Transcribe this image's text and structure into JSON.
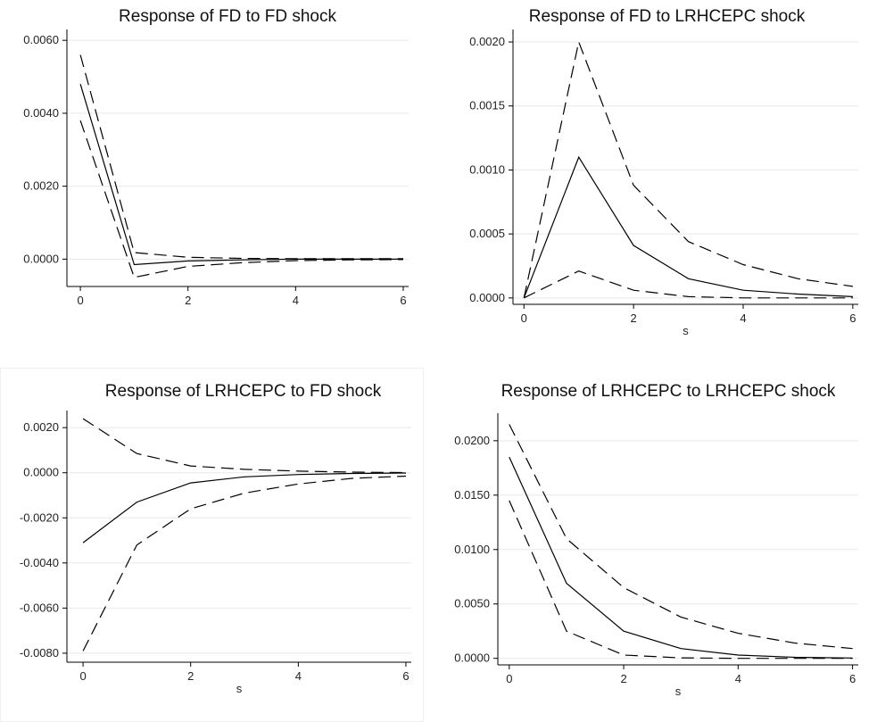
{
  "chart_data": [
    {
      "type": "line",
      "title": "Response of FD to FD shock",
      "xlabel": "",
      "ylabel": "",
      "x": [
        0,
        1,
        2,
        3,
        4,
        5,
        6
      ],
      "xticks": [
        0,
        2,
        4,
        6
      ],
      "yticks": [
        0.0,
        0.002,
        0.004,
        0.006
      ],
      "ytick_labels": [
        "0.0000",
        "0.0020",
        "0.0040",
        "0.0060"
      ],
      "xlim": [
        -0.25,
        6.1
      ],
      "ylim": [
        -0.00075,
        0.0062
      ],
      "grid": true,
      "series": [
        {
          "values": [
            0.0048,
            -0.00015,
            -5e-05,
            -2e-05,
            0.0,
            0.0,
            0.0
          ],
          "style": "solid"
        },
        {
          "values": [
            0.0056,
            0.00018,
            5e-05,
            2e-05,
            1e-05,
            1e-05,
            1e-05
          ],
          "style": "dashed"
        },
        {
          "values": [
            0.0038,
            -0.0005,
            -0.0002,
            -0.0001,
            -4e-05,
            -2e-05,
            -1e-05
          ],
          "style": "dashed"
        }
      ]
    },
    {
      "type": "line",
      "title": "Response of FD to LRHCEPC shock",
      "xlabel": "s",
      "ylabel": "",
      "x": [
        0,
        1,
        2,
        3,
        4,
        5,
        6
      ],
      "xticks": [
        0,
        2,
        4,
        6
      ],
      "yticks": [
        0.0,
        0.0005,
        0.001,
        0.0015,
        0.002
      ],
      "ytick_labels": [
        "0.0000",
        "0.0005",
        "0.0010",
        "0.0015",
        "0.0020"
      ],
      "xlim": [
        -0.2,
        6.1
      ],
      "ylim": [
        -5e-05,
        0.00207
      ],
      "grid": true,
      "series": [
        {
          "values": [
            0.0,
            0.0011,
            0.00041,
            0.00015,
            6e-05,
            3e-05,
            1e-05
          ],
          "style": "solid"
        },
        {
          "values": [
            0.0,
            0.002,
            0.00088,
            0.00044,
            0.00026,
            0.00015,
            9e-05
          ],
          "style": "dashed"
        },
        {
          "values": [
            0.0,
            0.00021,
            6e-05,
            1e-05,
            0.0,
            0.0,
            0.0
          ],
          "style": "dashed"
        }
      ]
    },
    {
      "type": "line",
      "title": "Response of LRHCEPC to FD shock",
      "xlabel": "",
      "ylabel": "",
      "x": [
        0,
        1,
        2,
        3,
        4,
        5,
        6
      ],
      "xticks": [
        0,
        2,
        4,
        6
      ],
      "yticks": [
        -0.008,
        -0.006,
        -0.004,
        -0.002,
        0.0,
        0.002
      ],
      "ytick_labels": [
        "-0.0080",
        "-0.0060",
        "-0.0040",
        "-0.0020",
        "0.0000",
        "0.0020"
      ],
      "xlim": [
        -0.3,
        6.1
      ],
      "ylim": [
        -0.0084,
        0.0026
      ],
      "grid": true,
      "series": [
        {
          "values": [
            -0.0031,
            -0.0013,
            -0.00045,
            -0.00018,
            -8e-05,
            -3e-05,
            -1e-05
          ],
          "style": "solid"
        },
        {
          "values": [
            0.0024,
            0.00085,
            0.0003,
            0.00015,
            7e-05,
            3e-05,
            1e-05
          ],
          "style": "dashed"
        },
        {
          "values": [
            -0.0079,
            -0.0032,
            -0.0016,
            -0.0009,
            -0.0005,
            -0.00025,
            -0.00015
          ],
          "style": "dashed"
        }
      ]
    },
    {
      "type": "line",
      "title": "Response of LRHCEPC to LRHCEPC shock",
      "xlabel": "s",
      "ylabel": "",
      "x": [
        0,
        1,
        2,
        3,
        4,
        5,
        6
      ],
      "xticks": [
        0,
        2,
        4,
        6
      ],
      "yticks": [
        0.0,
        0.005,
        0.01,
        0.015,
        0.02
      ],
      "ytick_labels": [
        "0.0000",
        "0.0050",
        "0.0100",
        "0.0150",
        "0.0200"
      ],
      "xlim": [
        -0.2,
        6.1
      ],
      "ylim": [
        -0.0006,
        0.0222
      ],
      "grid": true,
      "series": [
        {
          "values": [
            0.0185,
            0.0069,
            0.0025,
            0.0009,
            0.0003,
            0.0001,
            3e-05
          ],
          "style": "solid"
        },
        {
          "values": [
            0.0215,
            0.011,
            0.0065,
            0.0038,
            0.0023,
            0.0014,
            0.0009
          ],
          "style": "dashed"
        },
        {
          "values": [
            0.0145,
            0.0025,
            0.0003,
            5e-05,
            0.0,
            0.0,
            0.0
          ],
          "style": "dashed"
        }
      ]
    }
  ]
}
